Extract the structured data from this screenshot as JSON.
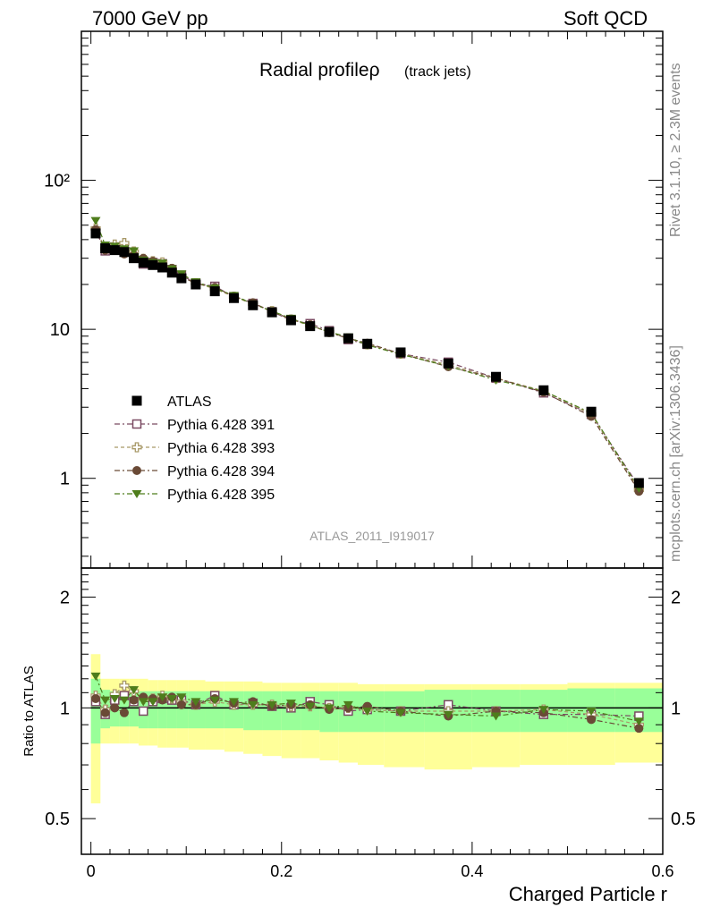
{
  "header": {
    "left": "7000 GeV pp",
    "right": "Soft QCD"
  },
  "side_labels": {
    "top": "Rivet 3.1.10, ≥ 2.3M events",
    "bottom": "mcplots.cern.ch [arXiv:1306.3436]"
  },
  "watermark": "ATLAS_2011_I919017",
  "chart_data": {
    "type": "scatter",
    "title_main": "Radial profileρ",
    "title_sub": "(track jets)",
    "xlabel": "Charged Particle r",
    "ylabel_ratio": "Ratio to ATLAS",
    "xlim": [
      -0.01,
      0.6
    ],
    "ylim": [
      0.25,
      1000
    ],
    "ylim_ratio": [
      0.4,
      2.4
    ],
    "yscale": "log",
    "x_ticks": [
      "0",
      "0.2",
      "0.4",
      "0.6"
    ],
    "y_ticks": [
      "1",
      "10",
      "10²"
    ],
    "ratio_ticks": [
      "0.5",
      "1",
      "2"
    ],
    "legend_position": "middle-left",
    "x": [
      0.005,
      0.015,
      0.025,
      0.035,
      0.045,
      0.055,
      0.065,
      0.075,
      0.085,
      0.095,
      0.11,
      0.13,
      0.15,
      0.17,
      0.19,
      0.21,
      0.23,
      0.25,
      0.27,
      0.29,
      0.325,
      0.375,
      0.425,
      0.475,
      0.525,
      0.575
    ],
    "ref_band_green": [
      [
        0.8,
        1.2
      ],
      [
        0.88,
        1.12
      ],
      [
        0.89,
        1.11
      ],
      [
        0.89,
        1.11
      ],
      [
        0.89,
        1.11
      ],
      [
        0.88,
        1.11
      ],
      [
        0.88,
        1.11
      ],
      [
        0.88,
        1.11
      ],
      [
        0.88,
        1.11
      ],
      [
        0.88,
        1.11
      ],
      [
        0.88,
        1.11
      ],
      [
        0.88,
        1.11
      ],
      [
        0.88,
        1.11
      ],
      [
        0.87,
        1.11
      ],
      [
        0.87,
        1.11
      ],
      [
        0.87,
        1.11
      ],
      [
        0.87,
        1.11
      ],
      [
        0.86,
        1.11
      ],
      [
        0.86,
        1.11
      ],
      [
        0.86,
        1.11
      ],
      [
        0.86,
        1.11
      ],
      [
        0.86,
        1.12
      ],
      [
        0.86,
        1.12
      ],
      [
        0.86,
        1.12
      ],
      [
        0.86,
        1.13
      ],
      [
        0.86,
        1.13
      ]
    ],
    "ref_band_yellow": [
      [
        0.55,
        1.4
      ],
      [
        0.8,
        1.2
      ],
      [
        0.8,
        1.2
      ],
      [
        0.8,
        1.2
      ],
      [
        0.8,
        1.2
      ],
      [
        0.79,
        1.2
      ],
      [
        0.79,
        1.19
      ],
      [
        0.78,
        1.19
      ],
      [
        0.78,
        1.19
      ],
      [
        0.78,
        1.19
      ],
      [
        0.77,
        1.19
      ],
      [
        0.77,
        1.18
      ],
      [
        0.76,
        1.18
      ],
      [
        0.75,
        1.18
      ],
      [
        0.74,
        1.17
      ],
      [
        0.73,
        1.17
      ],
      [
        0.73,
        1.17
      ],
      [
        0.72,
        1.17
      ],
      [
        0.71,
        1.17
      ],
      [
        0.7,
        1.16
      ],
      [
        0.69,
        1.16
      ],
      [
        0.68,
        1.16
      ],
      [
        0.69,
        1.16
      ],
      [
        0.7,
        1.16
      ],
      [
        0.7,
        1.17
      ],
      [
        0.71,
        1.17
      ]
    ],
    "series": [
      {
        "name": "ATLAS",
        "color": "#000000",
        "marker": "square-filled",
        "style": "points",
        "values": [
          44,
          35,
          34,
          33,
          30,
          28,
          27,
          26,
          24,
          22,
          20,
          18,
          16.2,
          14.5,
          13,
          11.5,
          10.5,
          9.6,
          8.7,
          8,
          7,
          5.9,
          4.8,
          3.9,
          2.8,
          0.93
        ]
      },
      {
        "name": "Pythia 6.428 391",
        "color": "#7a4a62",
        "marker": "square-open",
        "style": "dash-dot",
        "ratio": [
          1.04,
          0.96,
          1.05,
          1.08,
          1.04,
          0.98,
          1.04,
          1.06,
          1.05,
          1.05,
          1.02,
          1.08,
          1.02,
          1.03,
          1.01,
          1.0,
          1.04,
          1.02,
          0.98,
          0.99,
          0.98,
          1.02,
          0.98,
          0.96,
          0.96,
          0.95
        ]
      },
      {
        "name": "Pythia 6.428 393",
        "color": "#a89968",
        "marker": "cross-open",
        "style": "dashed",
        "ratio": [
          1.08,
          0.99,
          1.09,
          1.15,
          1.11,
          1.06,
          1.06,
          1.08,
          1.06,
          1.04,
          1.02,
          1.04,
          1.02,
          1.02,
          1.02,
          1.01,
          1.01,
          1.0,
          1.0,
          0.99,
          0.98,
          0.98,
          0.98,
          0.99,
          0.96,
          0.9
        ]
      },
      {
        "name": "Pythia 6.428 394",
        "color": "#6a4a36",
        "marker": "circle-filled",
        "style": "dash-dot",
        "ratio": [
          1.06,
          0.97,
          1.0,
          0.97,
          1.05,
          1.07,
          1.06,
          1.05,
          1.07,
          1.02,
          1.02,
          1.06,
          1.03,
          1.04,
          1.01,
          1.02,
          1.02,
          0.99,
          1.0,
          1.01,
          0.98,
          0.95,
          0.98,
          0.97,
          0.93,
          0.88
        ]
      },
      {
        "name": "Pythia 6.428 395",
        "color": "#4e7d1c",
        "marker": "triangle-down-filled",
        "style": "dash-dot",
        "ratio": [
          1.22,
          1.05,
          1.06,
          1.05,
          1.12,
          1.04,
          1.04,
          1.07,
          1.06,
          1.07,
          1.04,
          1.05,
          1.04,
          1.02,
          1.02,
          1.03,
          1.01,
          1.0,
          1.02,
          0.98,
          0.97,
          0.96,
          0.95,
          0.99,
          0.98,
          0.92
        ]
      }
    ]
  }
}
